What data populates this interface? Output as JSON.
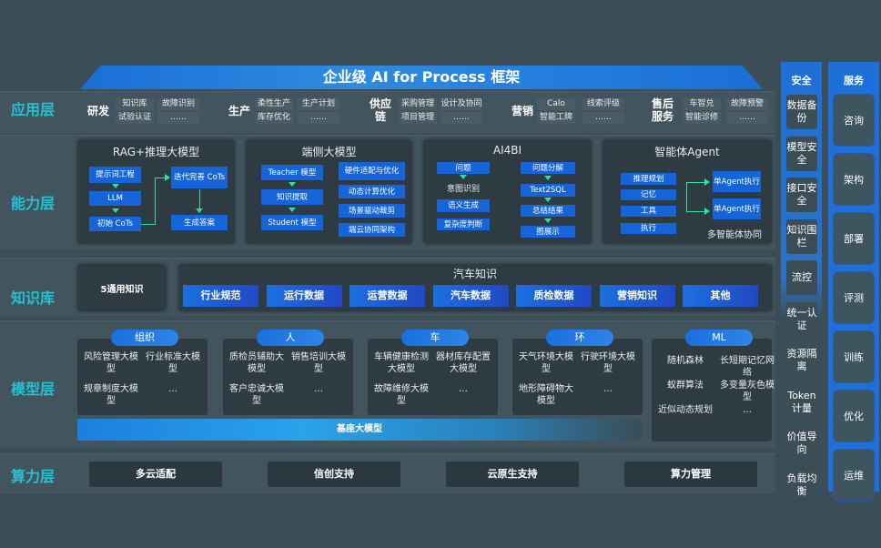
{
  "title": "企业级 AI for Process 框架",
  "layers": {
    "app": "应用层",
    "capability": "能力层",
    "knowledge": "知识库",
    "model": "模型层",
    "compute": "算力层"
  },
  "app_groups": [
    {
      "name": "研发",
      "cols": [
        [
          "知识库",
          "试验认证"
        ],
        [
          "故障识别",
          "……"
        ]
      ]
    },
    {
      "name": "生产",
      "cols": [
        [
          "柔性生产",
          "库存优化"
        ],
        [
          "生产计划",
          "……"
        ]
      ]
    },
    {
      "name": "供应链",
      "cols": [
        [
          "采购管理",
          "项目管理"
        ],
        [
          "设计及协同",
          "……"
        ]
      ]
    },
    {
      "name": "营销",
      "cols": [
        [
          "Calo",
          "智能工牌"
        ],
        [
          "线索评级",
          "……"
        ]
      ]
    },
    {
      "name": "售后服务",
      "cols": [
        [
          "车智兑",
          "智能诊修"
        ],
        [
          "故障预警",
          "……"
        ]
      ]
    }
  ],
  "capability": {
    "rag": {
      "title": "RAG+推理大模型",
      "items": [
        "提示词工程",
        "LLM",
        "初始 CoTs",
        "迭代完善 CoTs",
        "生成答案"
      ]
    },
    "edge": {
      "title": "端侧大模型",
      "items": [
        "Teacher 模型",
        "知识提取",
        "Student 模型",
        "硬件适配与优化",
        "动态计算优化",
        "场景驱动裁剪",
        "端云协同架构"
      ]
    },
    "ai4bi": {
      "title": "AI4BI",
      "items": [
        "问题",
        "意图识别",
        "语义生成",
        "复杂度判断",
        "问题分解",
        "Text2SQL",
        "总结结果",
        "图展示"
      ]
    },
    "agent": {
      "title": "智能体Agent",
      "items": [
        "推理规划",
        "记忆",
        "工具",
        "执行",
        "单Agent执行",
        "单Agent执行"
      ],
      "footer": "多智能体协同"
    }
  },
  "knowledge": {
    "general": "5通用知识",
    "auto_title": "汽车知识",
    "items": [
      "行业规范",
      "运行数据",
      "运营数据",
      "汽车数据",
      "质检数据",
      "营销知识",
      "其他"
    ]
  },
  "model": {
    "groups": [
      {
        "tag": "组织",
        "items": [
          "风险管理大模型",
          "行业标准大模型",
          "规章制度大模型",
          "…"
        ]
      },
      {
        "tag": "人",
        "items": [
          "质检员辅助大模型",
          "销售培训大模型",
          "客户忠诚大模型",
          "…"
        ]
      },
      {
        "tag": "车",
        "items": [
          "车辆健康检测大模型",
          "器材库存配置大模型",
          "故障维修大模型",
          "…"
        ]
      },
      {
        "tag": "环",
        "items": [
          "天气环境大模型",
          "行驶环境大模型",
          "地形障碍物大模型",
          "…"
        ]
      },
      {
        "tag": "ML",
        "items": [
          "随机森林",
          "长短期记忆网络",
          "蚁群算法",
          "多变量灰色模型",
          "近似动态规划",
          "…"
        ]
      }
    ],
    "base": "基座大模型"
  },
  "compute": [
    "多云适配",
    "信创支持",
    "云原生支持",
    "算力管理"
  ],
  "security": {
    "title": "安全",
    "items": [
      "数据备份",
      "模型安全",
      "接口安全",
      "知识围栏",
      "流控",
      "统一认证",
      "资源隔离",
      "Token计量",
      "价值导向",
      "负载均衡"
    ]
  },
  "services": {
    "title": "服务",
    "items": [
      "咨询",
      "架构",
      "部署",
      "评测",
      "训练",
      "优化",
      "运维"
    ]
  }
}
